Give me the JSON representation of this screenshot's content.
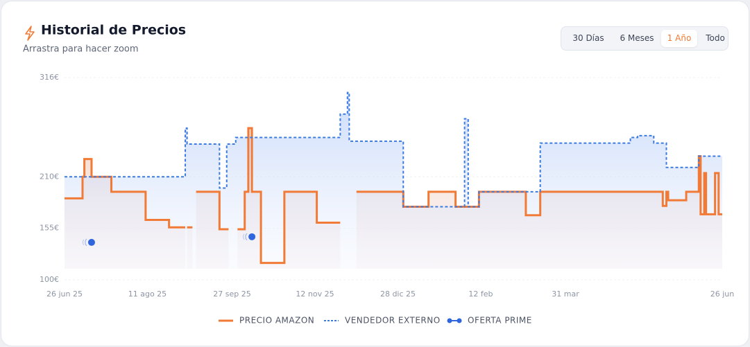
{
  "chart_data": {
    "type": "step-line",
    "title": "Historial de Precios",
    "subtitle": "Arrastra para hacer zoom",
    "range_options": [
      "30 Días",
      "6 Meses",
      "1 Año",
      "Todo"
    ],
    "active_range": 2,
    "xlim": [
      "2025-06-26",
      "2026-06-26"
    ],
    "xticks": [
      {
        "value": "2025-06-26",
        "label": "26 jun 25"
      },
      {
        "value": "2025-08-11",
        "label": "11 ago 25"
      },
      {
        "value": "2025-09-27",
        "label": "27 sep 25"
      },
      {
        "value": "2025-11-12",
        "label": "12 nov 25"
      },
      {
        "value": "2025-12-28",
        "label": "28 dic 25"
      },
      {
        "value": "2026-02-12",
        "label": "12 feb"
      },
      {
        "value": "2026-03-31",
        "label": "31 mar"
      },
      {
        "value": "2026-06-26",
        "label": "26 jun"
      }
    ],
    "ylim": [
      100,
      316
    ],
    "yticks": [
      {
        "value": 100,
        "label": "100€"
      },
      {
        "value": 155,
        "label": "155€"
      },
      {
        "value": 210,
        "label": "210€"
      },
      {
        "value": 316,
        "label": "316€"
      }
    ],
    "grid": true,
    "series": [
      {
        "name": "PRECIO AMAZON",
        "color": "#f07a36",
        "style": "solid",
        "x": [
          "2025-06-26",
          "2025-07-06",
          "2025-07-07",
          "2025-07-11",
          "2025-07-22",
          "2025-08-10",
          "2025-08-23",
          "2025-08-31",
          "2025-09-01",
          "2025-09-02",
          "2025-09-04",
          "2025-09-05",
          "2025-09-07",
          "2025-09-20",
          "2025-09-24",
          "2025-09-25",
          "2025-09-30",
          "2025-10-04",
          "2025-10-06",
          "2025-10-08",
          "2025-10-13",
          "2025-10-26",
          "2025-11-13",
          "2025-11-25",
          "2025-11-26",
          "2025-12-05",
          "2025-12-31",
          "2026-01-14",
          "2026-01-29",
          "2026-02-11",
          "2026-03-09",
          "2026-03-17",
          "2026-05-24",
          "2026-05-26",
          "2026-05-27",
          "2026-06-06",
          "2026-06-13",
          "2026-06-14",
          "2026-06-16",
          "2026-06-17",
          "2026-06-22",
          "2026-06-24",
          "2026-06-26"
        ],
        "values": [
          187,
          210,
          229,
          210,
          194,
          164,
          156,
          156,
          null,
          156,
          156,
          null,
          194,
          154,
          154,
          null,
          154,
          194,
          262,
          194,
          118,
          194,
          161,
          161,
          null,
          194,
          178,
          194,
          178,
          194,
          169,
          194,
          179,
          194,
          185,
          194,
          232,
          170,
          214,
          170,
          214,
          170,
          170
        ]
      },
      {
        "name": "VENDEDOR EXTERNO",
        "color": "#3b7ae0",
        "style": "dashed",
        "x": [
          "2025-06-26",
          "2025-09-01",
          "2025-09-02",
          "2025-09-20",
          "2025-09-24",
          "2025-09-29",
          "2025-11-26",
          "2025-11-30",
          "2025-12-01",
          "2025-12-31",
          "2026-02-03",
          "2026-02-05",
          "2026-02-11",
          "2026-03-17",
          "2026-05-06",
          "2026-05-10",
          "2026-05-19",
          "2026-05-26",
          "2026-06-13",
          "2026-06-26"
        ],
        "values": [
          210,
          262,
          245,
          198,
          245,
          252,
          277,
          300,
          248,
          178,
          272,
          178,
          194,
          246,
          252,
          254,
          246,
          220,
          232,
          232
        ]
      },
      {
        "name": "OFERTA PRIME",
        "color": "#2f66dd",
        "style": "dots",
        "x": [
          "2025-07-11",
          "2025-10-08"
        ],
        "values": [
          140,
          146
        ]
      }
    ]
  }
}
